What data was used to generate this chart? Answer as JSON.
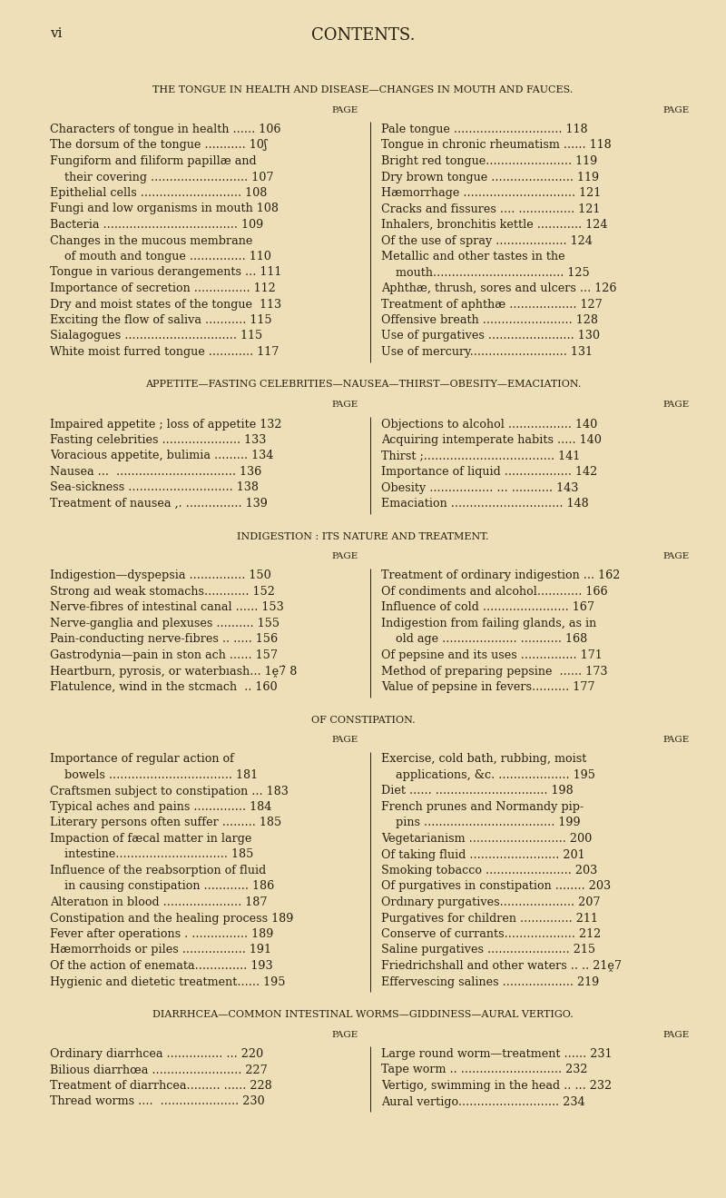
{
  "bg_color": "#ede0b8",
  "text_color": "#2a1e0e",
  "page_num": "vi",
  "title": "CONTENTS.",
  "sections": [
    {
      "heading": "THE TONGUE IN HEALTH AND DISEASE—CHANGES IN MOUTH AND FAUCES.",
      "has_page_labels": true,
      "left_col": [
        "Characters of tongue in health ...... 106",
        "The dorsum of the tongue ........... 10ʃ",
        "Fungiform and filiform papillæ and",
        "    their covering .......................... 107",
        "Epithelial cells ........................... 108",
        "Fungi and low organisms in mouth 108",
        "Bacteria .................................... 109",
        "Changes in the mucous membrane",
        "    of mouth and tongue ............... 110",
        "Tongue in various derangements ... 111",
        "Importance of secretion ............... 112",
        "Dry and moist states of the tongue  113",
        "Exciting the flow of saliva ........... 115",
        "Sialagogues .............................. 115",
        "White moist furred tongue ............ 117"
      ],
      "right_col": [
        "Pale tongue ............................. 118",
        "Tongue in chronic rheumatism ...... 118",
        "Bright red tongue....................... 119",
        "Dry brown tongue ...................... 119",
        "Hæmorrhage .............................. 121",
        "Cracks and fissures .... ............... 121",
        "Inhalers, bronchitis kettle ............ 124",
        "Of the use of spray ................... 124",
        "Metallic and other tastes in the",
        "    mouth................................... 125",
        "Aphthæ, thrush, sores and ulcers ... 126",
        "Treatment of aphthæ .................. 127",
        "Offensive breath ........................ 128",
        "Use of purgatives ....................... 130",
        "Use of mercury.......................... 131"
      ]
    },
    {
      "heading": "APPETITE—FASTING CELEBRITIES—NAUSEA—THIRST—OBESITY—EMACIATION.",
      "has_page_labels": false,
      "left_col": [
        "Impaired appetite ; loss of appetite 132",
        "Fasting celebrities ..................... 133",
        "Voracious appetite, bulimia ......... 134",
        "Nausea ...  ................................ 136",
        "Sea-sickness ............................ 138",
        "Treatment of nausea ,. ............... 139"
      ],
      "right_col": [
        "Objections to alcohol ................. 140",
        "Acquiring intemperate habits ..... 140",
        "Thirst ;................................... 141",
        "Importance of liquid .................. 142",
        "Obesity ................. ... ........... 143",
        "Emaciation .............................. 148"
      ]
    },
    {
      "heading": "INDIGESTION : ITS NATURE AND TREATMENT.",
      "has_page_labels": false,
      "left_col": [
        "Indigestion—dyspepsia ............... 150",
        "Strong aıd weak stomachs............ 152",
        "Nerve-fibres of intestinal canal ...... 153",
        "Nerve-ganglia and plexuses .......... 155",
        "Pain-conducting nerve-fibres .. ..... 156",
        "Gastrodynia—pain in ston ach ...... 157",
        "Heartburn, pyrosis, or waterbıash... 1ḙ7̇ 8",
        "Flatulence, wind in the stcmach  .. 160"
      ],
      "right_col": [
        "Treatment of ordinary indigestion ... 162",
        "Of condiments and alcohol............ 166",
        "Influence of cold ....................... 167",
        "Indigestion from failing glands, as in",
        "    old age .................... ........... 168",
        "Of pepsine and its uses ............... 171",
        "Method of preparing pepsine  ...... 173",
        "Value of pepsine in fevers.......... 177"
      ]
    },
    {
      "heading": "OF CONSTIPATION.",
      "has_page_labels": false,
      "left_col": [
        "Importance of regular action of",
        "    bowels ................................. 181",
        "Craftsmen subject to constipation ... 183",
        "Typical aches and pains .............. 184",
        "Literary persons often suffer ......... 185",
        "Impaction of fæcal matter in large",
        "    intestine.............................. 185",
        "Influence of the reabsorption of fluid",
        "    in causing constipation ............ 186",
        "Alteratıon in blood ..................... 187",
        "Constipation and the healing process 189",
        "Fever after operations . ............... 189",
        "Hæmorrhoids or piles ................. 191",
        "Of the action of enemata.............. 193",
        "Hygienic and dietetic treatment...... 195"
      ],
      "right_col": [
        "Exercise, cold bath, rubbing, moist",
        "    applications, &c. ................... 195",
        "Diet ...... .............................. 198",
        "French prunes and Normandy pip-",
        "    pins ................................... 199",
        "Vegetarianism .......................... 200",
        "Of taking fluid ........................ 201",
        "Smoking tobacco ....................... 203",
        "Of purgatives in constipation ........ 203",
        "Ordınary purgatives.................... 207",
        "Purgatives for children .............. 211",
        "Conserve of currants................... 212",
        "Saline purgatives ...................... 215",
        "Friedrichshall and other waters .. .. 21ḙ7",
        "Effervescing salines ................... 219"
      ]
    },
    {
      "heading": "DIARRHCEA—COMMON INTESTINAL WORMS—GIDDINESS—AURAL VERTIGO.",
      "has_page_labels": false,
      "left_col": [
        "Ordinary diarrhcea ............... ... 220",
        "Bilious diarrhœa ........................ 227",
        "Treatment of diarrhcea......... ...... 228",
        "Thread worms ....  ..................... 230"
      ],
      "right_col": [
        "Large round worm—treatment ...... 231",
        "Tape worm .. ........................... 232",
        "Vertigo, swimming in the head .. ... 232",
        "Aural vertigo........................... 234"
      ]
    }
  ]
}
